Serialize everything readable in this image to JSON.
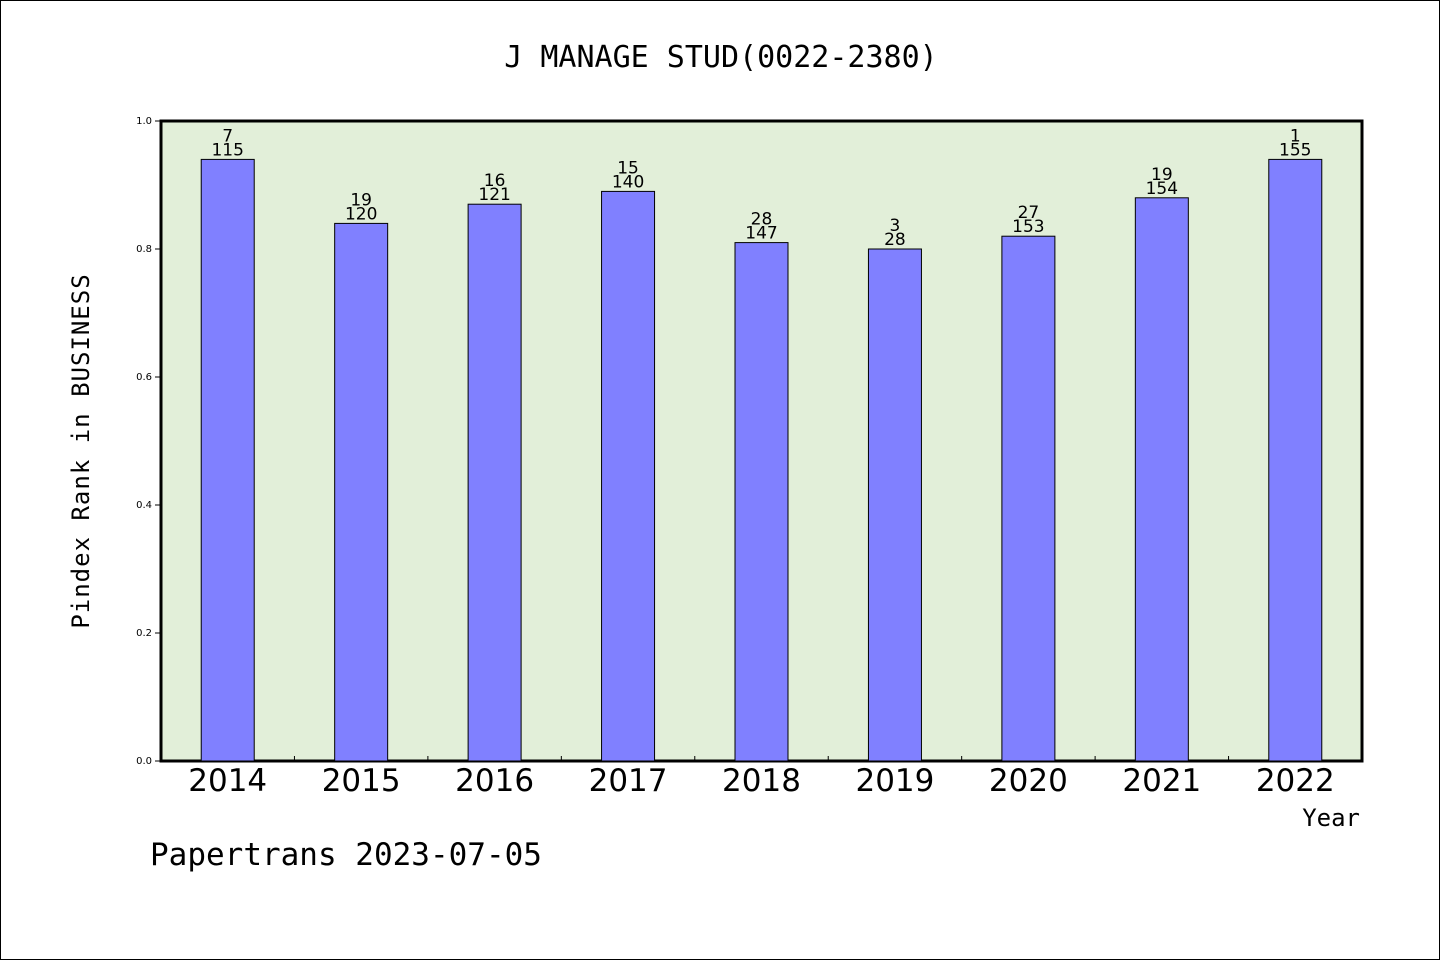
{
  "chart_data": {
    "type": "bar",
    "title": "J MANAGE STUD(0022-2380)",
    "xlabel": "Year",
    "ylabel": "Pindex Rank in BUSINESS",
    "ylim": [
      0,
      1.0
    ],
    "yticks": [
      "0.0",
      "0.2",
      "0.4",
      "0.6",
      "0.8",
      "1.0"
    ],
    "categories": [
      "2014",
      "2015",
      "2016",
      "2017",
      "2018",
      "2019",
      "2020",
      "2021",
      "2022"
    ],
    "values": [
      0.94,
      0.84,
      0.87,
      0.89,
      0.81,
      0.8,
      0.82,
      0.88,
      0.94
    ],
    "label_top": [
      "7",
      "19",
      "16",
      "15",
      "28",
      "3",
      "27",
      "19",
      "1"
    ],
    "label_bottom": [
      "115",
      "120",
      "121",
      "140",
      "147",
      "28",
      "153",
      "154",
      "155"
    ],
    "grid": false,
    "colors": {
      "bar": "#8080ff",
      "plot_bg": "#e2efd9"
    }
  },
  "footer": "Papertrans 2023-07-05"
}
